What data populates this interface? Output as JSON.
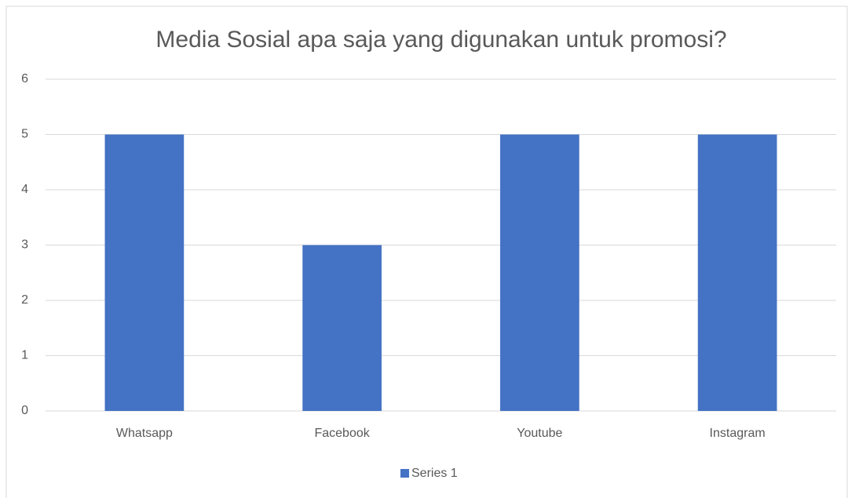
{
  "chart_data": {
    "type": "bar",
    "title": "Media Sosial apa saja yang digunakan untuk promosi?",
    "categories": [
      "Whatsapp",
      "Facebook",
      "Youtube",
      "Instagram"
    ],
    "series": [
      {
        "name": "Series 1",
        "color": "#4472c4",
        "values": [
          5,
          3,
          5,
          5
        ]
      }
    ],
    "ylim": [
      0,
      6
    ],
    "yticks": [
      0,
      1,
      2,
      3,
      4,
      5,
      6
    ],
    "grid": true,
    "legend": "bottom"
  }
}
